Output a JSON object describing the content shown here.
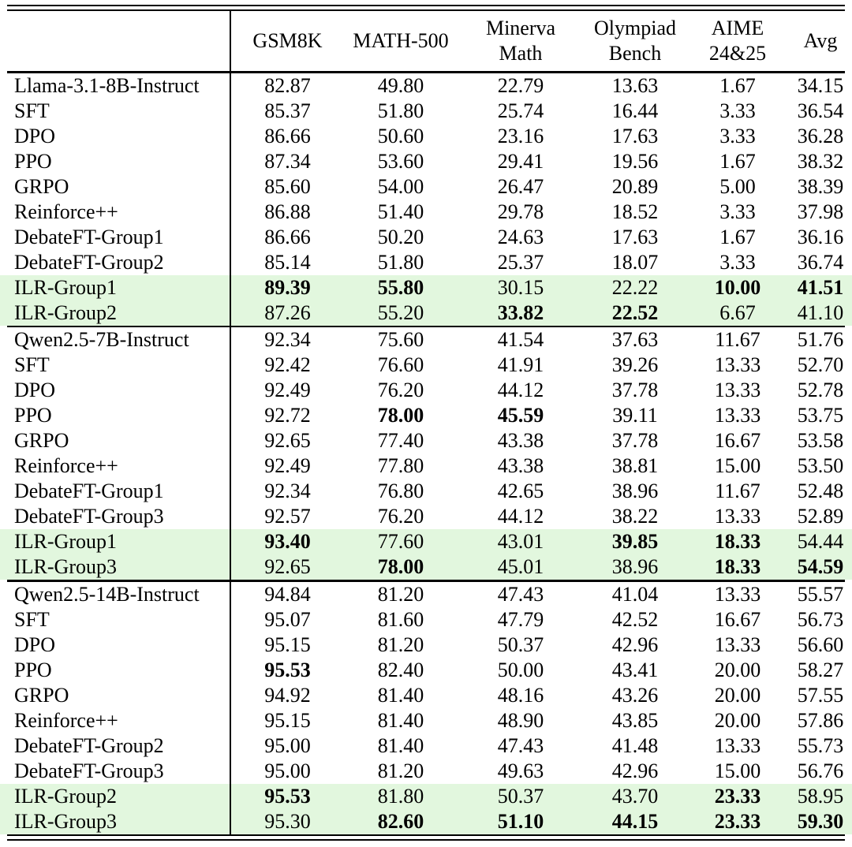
{
  "colors": {
    "highlight": "#e2f7de",
    "rule": "#000000",
    "text": "#000000",
    "background": "#ffffff"
  },
  "table": {
    "columns": [
      {
        "id": "model",
        "lines": [
          ""
        ]
      },
      {
        "id": "gsm8k",
        "lines": [
          "GSM8K"
        ]
      },
      {
        "id": "math500",
        "lines": [
          "MATH-500"
        ]
      },
      {
        "id": "minerva",
        "lines": [
          "Minerva",
          "Math"
        ]
      },
      {
        "id": "olympiad",
        "lines": [
          "Olympiad",
          "Bench"
        ]
      },
      {
        "id": "aime",
        "lines": [
          "AIME",
          "24&25"
        ]
      },
      {
        "id": "avg",
        "lines": [
          "Avg"
        ]
      }
    ],
    "sections": [
      {
        "rows": [
          {
            "label": "Llama-3.1-8B-Instruct",
            "highlight": false,
            "cells": [
              {
                "v": "82.87"
              },
              {
                "v": "49.80"
              },
              {
                "v": "22.79"
              },
              {
                "v": "13.63"
              },
              {
                "v": "1.67"
              },
              {
                "v": "34.15"
              }
            ]
          },
          {
            "label": "SFT",
            "highlight": false,
            "cells": [
              {
                "v": "85.37"
              },
              {
                "v": "51.80"
              },
              {
                "v": "25.74"
              },
              {
                "v": "16.44"
              },
              {
                "v": "3.33"
              },
              {
                "v": "36.54"
              }
            ]
          },
          {
            "label": "DPO",
            "highlight": false,
            "cells": [
              {
                "v": "86.66"
              },
              {
                "v": "50.60"
              },
              {
                "v": "23.16"
              },
              {
                "v": "17.63"
              },
              {
                "v": "3.33"
              },
              {
                "v": "36.28"
              }
            ]
          },
          {
            "label": "PPO",
            "highlight": false,
            "cells": [
              {
                "v": "87.34"
              },
              {
                "v": "53.60"
              },
              {
                "v": "29.41"
              },
              {
                "v": "19.56"
              },
              {
                "v": "1.67"
              },
              {
                "v": "38.32"
              }
            ]
          },
          {
            "label": "GRPO",
            "highlight": false,
            "cells": [
              {
                "v": "85.60"
              },
              {
                "v": "54.00"
              },
              {
                "v": "26.47"
              },
              {
                "v": "20.89"
              },
              {
                "v": "5.00"
              },
              {
                "v": "38.39"
              }
            ]
          },
          {
            "label": "Reinforce++",
            "highlight": false,
            "cells": [
              {
                "v": "86.88"
              },
              {
                "v": "51.40"
              },
              {
                "v": "29.78"
              },
              {
                "v": "18.52"
              },
              {
                "v": "3.33"
              },
              {
                "v": "37.98"
              }
            ]
          },
          {
            "label": "DebateFT-Group1",
            "highlight": false,
            "cells": [
              {
                "v": "86.66"
              },
              {
                "v": "50.20"
              },
              {
                "v": "24.63"
              },
              {
                "v": "17.63"
              },
              {
                "v": "1.67"
              },
              {
                "v": "36.16"
              }
            ]
          },
          {
            "label": "DebateFT-Group2",
            "highlight": false,
            "cells": [
              {
                "v": "85.14"
              },
              {
                "v": "51.80"
              },
              {
                "v": "25.37"
              },
              {
                "v": "18.07"
              },
              {
                "v": "3.33"
              },
              {
                "v": "36.74"
              }
            ]
          },
          {
            "label": "ILR-Group1",
            "highlight": true,
            "cells": [
              {
                "v": "89.39",
                "b": true
              },
              {
                "v": "55.80",
                "b": true
              },
              {
                "v": "30.15"
              },
              {
                "v": "22.22"
              },
              {
                "v": "10.00",
                "b": true
              },
              {
                "v": "41.51",
                "b": true
              }
            ]
          },
          {
            "label": "ILR-Group2",
            "highlight": true,
            "cells": [
              {
                "v": "87.26"
              },
              {
                "v": "55.20"
              },
              {
                "v": "33.82",
                "b": true
              },
              {
                "v": "22.52",
                "b": true
              },
              {
                "v": "6.67"
              },
              {
                "v": "41.10"
              }
            ]
          }
        ]
      },
      {
        "rows": [
          {
            "label": "Qwen2.5-7B-Instruct",
            "highlight": false,
            "cells": [
              {
                "v": "92.34"
              },
              {
                "v": "75.60"
              },
              {
                "v": "41.54"
              },
              {
                "v": "37.63"
              },
              {
                "v": "11.67"
              },
              {
                "v": "51.76"
              }
            ]
          },
          {
            "label": "SFT",
            "highlight": false,
            "cells": [
              {
                "v": "92.42"
              },
              {
                "v": "76.60"
              },
              {
                "v": "41.91"
              },
              {
                "v": "39.26"
              },
              {
                "v": "13.33"
              },
              {
                "v": "52.70"
              }
            ]
          },
          {
            "label": "DPO",
            "highlight": false,
            "cells": [
              {
                "v": "92.49"
              },
              {
                "v": "76.20"
              },
              {
                "v": "44.12"
              },
              {
                "v": "37.78"
              },
              {
                "v": "13.33"
              },
              {
                "v": "52.78"
              }
            ]
          },
          {
            "label": "PPO",
            "highlight": false,
            "cells": [
              {
                "v": "92.72"
              },
              {
                "v": "78.00",
                "b": true
              },
              {
                "v": "45.59",
                "b": true
              },
              {
                "v": "39.11"
              },
              {
                "v": "13.33"
              },
              {
                "v": "53.75"
              }
            ]
          },
          {
            "label": "GRPO",
            "highlight": false,
            "cells": [
              {
                "v": "92.65"
              },
              {
                "v": "77.40"
              },
              {
                "v": "43.38"
              },
              {
                "v": "37.78"
              },
              {
                "v": "16.67"
              },
              {
                "v": "53.58"
              }
            ]
          },
          {
            "label": "Reinforce++",
            "highlight": false,
            "cells": [
              {
                "v": "92.49"
              },
              {
                "v": "77.80"
              },
              {
                "v": "43.38"
              },
              {
                "v": "38.81"
              },
              {
                "v": "15.00"
              },
              {
                "v": "53.50"
              }
            ]
          },
          {
            "label": "DebateFT-Group1",
            "highlight": false,
            "cells": [
              {
                "v": "92.34"
              },
              {
                "v": "76.80"
              },
              {
                "v": "42.65"
              },
              {
                "v": "38.96"
              },
              {
                "v": "11.67"
              },
              {
                "v": "52.48"
              }
            ]
          },
          {
            "label": "DebateFT-Group3",
            "highlight": false,
            "cells": [
              {
                "v": "92.57"
              },
              {
                "v": "76.20"
              },
              {
                "v": "44.12"
              },
              {
                "v": "38.22"
              },
              {
                "v": "13.33"
              },
              {
                "v": "52.89"
              }
            ]
          },
          {
            "label": "ILR-Group1",
            "highlight": true,
            "cells": [
              {
                "v": "93.40",
                "b": true
              },
              {
                "v": "77.60"
              },
              {
                "v": "43.01"
              },
              {
                "v": "39.85",
                "b": true
              },
              {
                "v": "18.33",
                "b": true
              },
              {
                "v": "54.44"
              }
            ]
          },
          {
            "label": "ILR-Group3",
            "highlight": true,
            "cells": [
              {
                "v": "92.65"
              },
              {
                "v": "78.00",
                "b": true
              },
              {
                "v": "45.01"
              },
              {
                "v": "38.96"
              },
              {
                "v": "18.33",
                "b": true
              },
              {
                "v": "54.59",
                "b": true
              }
            ]
          }
        ]
      },
      {
        "rows": [
          {
            "label": "Qwen2.5-14B-Instruct",
            "highlight": false,
            "cells": [
              {
                "v": "94.84"
              },
              {
                "v": "81.20"
              },
              {
                "v": "47.43"
              },
              {
                "v": "41.04"
              },
              {
                "v": "13.33"
              },
              {
                "v": "55.57"
              }
            ]
          },
          {
            "label": "SFT",
            "highlight": false,
            "cells": [
              {
                "v": "95.07"
              },
              {
                "v": "81.60"
              },
              {
                "v": "47.79"
              },
              {
                "v": "42.52"
              },
              {
                "v": "16.67"
              },
              {
                "v": "56.73"
              }
            ]
          },
          {
            "label": "DPO",
            "highlight": false,
            "cells": [
              {
                "v": "95.15"
              },
              {
                "v": "81.20"
              },
              {
                "v": "50.37"
              },
              {
                "v": "42.96"
              },
              {
                "v": "13.33"
              },
              {
                "v": "56.60"
              }
            ]
          },
          {
            "label": "PPO",
            "highlight": false,
            "cells": [
              {
                "v": "95.53",
                "b": true
              },
              {
                "v": "82.40"
              },
              {
                "v": "50.00"
              },
              {
                "v": "43.41"
              },
              {
                "v": "20.00"
              },
              {
                "v": "58.27"
              }
            ]
          },
          {
            "label": "GRPO",
            "highlight": false,
            "cells": [
              {
                "v": "94.92"
              },
              {
                "v": "81.40"
              },
              {
                "v": "48.16"
              },
              {
                "v": "43.26"
              },
              {
                "v": "20.00"
              },
              {
                "v": "57.55"
              }
            ]
          },
          {
            "label": "Reinforce++",
            "highlight": false,
            "cells": [
              {
                "v": "95.15"
              },
              {
                "v": "81.40"
              },
              {
                "v": "48.90"
              },
              {
                "v": "43.85"
              },
              {
                "v": "20.00"
              },
              {
                "v": "57.86"
              }
            ]
          },
          {
            "label": "DebateFT-Group2",
            "highlight": false,
            "cells": [
              {
                "v": "95.00"
              },
              {
                "v": "81.40"
              },
              {
                "v": "47.43"
              },
              {
                "v": "41.48"
              },
              {
                "v": "13.33"
              },
              {
                "v": "55.73"
              }
            ]
          },
          {
            "label": "DebateFT-Group3",
            "highlight": false,
            "cells": [
              {
                "v": "95.00"
              },
              {
                "v": "81.20"
              },
              {
                "v": "49.63"
              },
              {
                "v": "42.96"
              },
              {
                "v": "15.00"
              },
              {
                "v": "56.76"
              }
            ]
          },
          {
            "label": "ILR-Group2",
            "highlight": true,
            "cells": [
              {
                "v": "95.53",
                "b": true
              },
              {
                "v": "81.80"
              },
              {
                "v": "50.37"
              },
              {
                "v": "43.70"
              },
              {
                "v": "23.33",
                "b": true
              },
              {
                "v": "58.95"
              }
            ]
          },
          {
            "label": "ILR-Group3",
            "highlight": true,
            "cells": [
              {
                "v": "95.30"
              },
              {
                "v": "82.60",
                "b": true
              },
              {
                "v": "51.10",
                "b": true
              },
              {
                "v": "44.15",
                "b": true
              },
              {
                "v": "23.33",
                "b": true
              },
              {
                "v": "59.30",
                "b": true
              }
            ]
          }
        ]
      }
    ]
  }
}
